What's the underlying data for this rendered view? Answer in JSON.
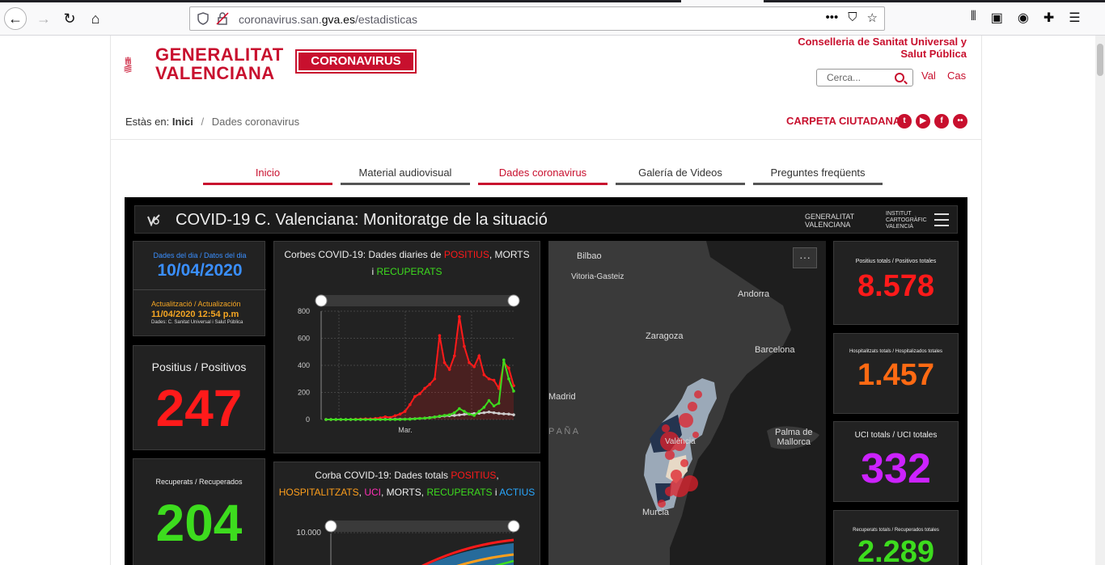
{
  "browser": {
    "url_prefix": "coronavirus.san.",
    "url_domain": "gva.es",
    "url_suffix": "/estadisticas"
  },
  "header": {
    "logo_line1": "GENERALITAT",
    "logo_line2": "VALENCIANA",
    "corona_label": "CORONAVIRUS",
    "conselleria_line1": "Conselleria de Sanitat Universal y",
    "conselleria_line2": "Salut Pública",
    "search_placeholder": "Cerca...",
    "lang_val": "Val",
    "lang_cas": "Cas"
  },
  "breadcrumb": {
    "prefix": "Estàs en:",
    "home": "Inici",
    "sep": "/",
    "current": "Dades coronavirus"
  },
  "carpeta": "CARPETA CIUTADANA",
  "menu": [
    {
      "label": "Inicio"
    },
    {
      "label": "Material audiovisual"
    },
    {
      "label": "Dades coronavirus"
    },
    {
      "label": "Galería de Videos"
    },
    {
      "label": "Preguntes freqüents"
    }
  ],
  "dashboard": {
    "title": "COVID-19 C. Valenciana: Monitoratge de la situació",
    "gv_line1": "GENERALITAT",
    "gv_line2": "VALENCIANA",
    "icv_line1": "INSTITUT",
    "icv_line2": "CARTOGRÀFIC",
    "icv_line3": "VALENCIÀ",
    "date_label": "Dades del dia / Datos del dia",
    "date_value": "10/04/2020",
    "update_label": "Actualització / Actualización",
    "update_value": "11/04/2020 12:54 p.m",
    "source_label": "Dades: C. Sanitat Universal i Salut Pública",
    "positius_label": "Positius / Positivos",
    "positius_value": "247",
    "recuperats_label": "Recuperats / Recuperados",
    "recuperats_value": "204",
    "chart1_title_a": "Corbes COVID-19: Dades diaries de ",
    "chart1_title_b": "POSITIUS",
    "chart1_title_c": ", MORTS",
    "chart1_title_d": "i ",
    "chart1_title_e": "RECUPERATS",
    "chart2_title_a": "Corba COVID-19: Dades totals ",
    "chart2_title_b": "POSITIUS",
    "chart2_title_c": ",",
    "chart2_title_d": "HOSPITALITZATS",
    "chart2_title_e": ", ",
    "chart2_title_f": "UCI",
    "chart2_title_g": ", MORTS, ",
    "chart2_title_h": "RECUPERATS",
    "chart2_title_i": " i ",
    "chart2_title_j": "ACTIUS",
    "chart2_ytick": "10.000",
    "map_labels": {
      "bilbao": "Bilbao",
      "vitoria": "Vitoria-Gasteiz",
      "andorra": "Andorra",
      "zaragoza": "Zaragoza",
      "barcelona": "Barcelona",
      "madrid": "Madrid",
      "espana": "P A Ñ A",
      "valencia": "València",
      "palma1": "Palma de",
      "palma2": "Mallorca",
      "murcia": "Murcia",
      "more": "···"
    },
    "right": {
      "pos_total_label": "Positius totals / Positivos totales",
      "pos_total_value": "8.578",
      "hosp_label": "Hospitalitzats totals / Hospitalizados totales",
      "hosp_value": "1.457",
      "uci_label": "UCI totals / UCI totales",
      "uci_value": "332",
      "rec_label": "Recuperats totals / Recuperados totales",
      "rec_value": "2.289"
    },
    "colors": {
      "red": "#ff1a1a",
      "green": "#3ddc1e",
      "orange": "#ff6a13",
      "purple": "#cc22ff",
      "blue": "#3a8fff",
      "hospital": "#ff9f1c",
      "uci": "#ff2fb5",
      "actius": "#29a8ff"
    }
  },
  "chart_data": [
    {
      "type": "line",
      "title": "Corbes COVID-19: Dades diaries de POSITIUS, MORTS i RECUPERATS",
      "xlabel": "",
      "ylabel": "",
      "x_tick_labels": [
        "Mar."
      ],
      "yticks": [
        0,
        200,
        400,
        600,
        800
      ],
      "ylim": [
        0,
        800
      ],
      "series": [
        {
          "name": "POSITIUS",
          "color": "#ff1a1a",
          "values": [
            0,
            0,
            0,
            0,
            0,
            0,
            2,
            3,
            5,
            4,
            8,
            12,
            20,
            15,
            28,
            40,
            60,
            110,
            170,
            190,
            230,
            260,
            300,
            620,
            420,
            370,
            470,
            760,
            540,
            420,
            390,
            470,
            330,
            300,
            290,
            230,
            420,
            380,
            250
          ]
        },
        {
          "name": "MORTS",
          "color": "#cccccc",
          "values": [
            0,
            0,
            0,
            0,
            0,
            0,
            0,
            0,
            0,
            0,
            0,
            0,
            1,
            1,
            2,
            2,
            3,
            4,
            6,
            8,
            10,
            14,
            18,
            22,
            26,
            28,
            30,
            34,
            38,
            40,
            44,
            46,
            50,
            55,
            50,
            45,
            42,
            40,
            35
          ]
        },
        {
          "name": "RECUPERATS",
          "color": "#3ddc1e",
          "values": [
            0,
            0,
            0,
            0,
            0,
            0,
            0,
            0,
            0,
            0,
            0,
            0,
            0,
            0,
            0,
            0,
            2,
            2,
            5,
            8,
            10,
            12,
            18,
            25,
            30,
            35,
            50,
            80,
            60,
            40,
            30,
            60,
            90,
            140,
            100,
            120,
            440,
            300,
            210
          ]
        }
      ]
    },
    {
      "type": "area",
      "title": "Corba COVID-19: Dades totals POSITIUS, HOSPITALITZATS, UCI, MORTS, RECUPERATS i ACTIUS",
      "yticks": [
        10000
      ],
      "series": [
        {
          "name": "POSITIUS"
        },
        {
          "name": "HOSPITALITZATS"
        },
        {
          "name": "UCI"
        },
        {
          "name": "MORTS"
        },
        {
          "name": "RECUPERATS"
        },
        {
          "name": "ACTIUS"
        }
      ]
    }
  ]
}
